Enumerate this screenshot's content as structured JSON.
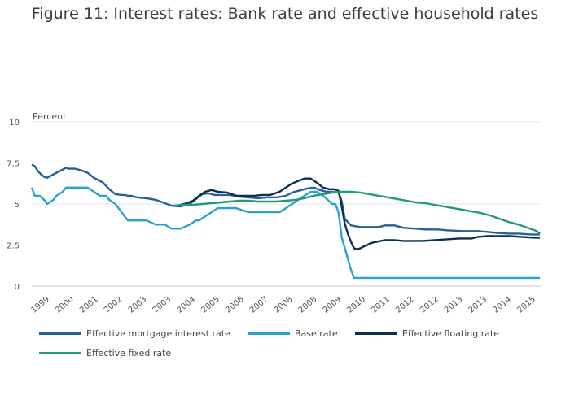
{
  "chart_data": {
    "type": "line",
    "title": "Figure 11: Interest rates: Bank rate and effective household rates",
    "ylabel": "Percent",
    "xlabel": "",
    "ylim": [
      0,
      10
    ],
    "xlim": [
      1998.6,
      2015.05
    ],
    "y_ticks": [
      "0",
      "2.5",
      "5",
      "7.5",
      "10"
    ],
    "y_tick_values": [
      0,
      2.5,
      5,
      7.5,
      10
    ],
    "x_ticks": [
      "1999",
      "2000",
      "2001",
      "2002",
      "2003",
      "2003",
      "2004",
      "2005",
      "2006",
      "2007",
      "2008",
      "2008",
      "2009",
      "2010",
      "2011",
      "2012",
      "2012",
      "2013",
      "2013",
      "2014",
      "2015"
    ],
    "grid": true,
    "legend_position": "bottom",
    "series": [
      {
        "name": "Effective mortgage interest rate",
        "color": "#25609a",
        "x": [
          1998.6,
          1998.7,
          1998.8,
          1998.9,
          1999.0,
          1999.1,
          1999.2,
          1999.3,
          1999.5,
          1999.6,
          1999.7,
          1999.8,
          1999.9,
          2000.0,
          2000.2,
          2000.4,
          2000.6,
          2000.8,
          2000.9,
          2001.1,
          2001.3,
          2001.5,
          2001.6,
          2001.7,
          2001.8,
          2002.0,
          2002.3,
          2002.6,
          2002.9,
          2003.1,
          2003.4,
          2003.7,
          2003.9,
          2004.1,
          2004.3,
          2004.5,
          2004.8,
          2005.0,
          2005.3,
          2005.6,
          2005.9,
          2006.2,
          2006.5,
          2006.8,
          2007.0,
          2007.3,
          2007.5,
          2007.7,
          2007.9,
          2008.1,
          2008.3,
          2008.5,
          2008.6,
          2008.7,
          2008.8,
          2008.9,
          2009.2,
          2009.5,
          2009.8,
          2010.0,
          2010.3,
          2010.6,
          2011.0,
          2011.3,
          2011.7,
          2012.0,
          2012.5,
          2013.0,
          2013.3,
          2013.6,
          2014.0,
          2014.3,
          2014.7,
          2015.0
        ],
        "values": [
          7.4,
          7.3,
          7.0,
          6.8,
          6.65,
          6.6,
          6.7,
          6.8,
          7.0,
          7.1,
          7.2,
          7.15,
          7.15,
          7.15,
          7.05,
          6.9,
          6.6,
          6.4,
          6.3,
          5.9,
          5.6,
          5.55,
          5.55,
          5.5,
          5.5,
          5.4,
          5.35,
          5.25,
          5.05,
          4.9,
          4.85,
          5.0,
          5.3,
          5.6,
          5.65,
          5.55,
          5.55,
          5.55,
          5.45,
          5.4,
          5.35,
          5.4,
          5.4,
          5.5,
          5.7,
          5.85,
          5.95,
          6.0,
          5.85,
          5.75,
          5.75,
          5.7,
          5.2,
          4.1,
          3.9,
          3.7,
          3.6,
          3.6,
          3.6,
          3.7,
          3.7,
          3.55,
          3.5,
          3.45,
          3.45,
          3.4,
          3.35,
          3.35,
          3.3,
          3.25,
          3.2,
          3.2,
          3.15,
          3.15
        ]
      },
      {
        "name": "Base rate",
        "color": "#2ba1d1",
        "x": [
          1998.6,
          1998.7,
          1998.85,
          1999.0,
          1999.1,
          1999.3,
          1999.4,
          1999.6,
          1999.7,
          1999.9,
          2000.0,
          2000.2,
          2000.4,
          2000.6,
          2000.8,
          2001.0,
          2001.1,
          2001.3,
          2001.5,
          2001.7,
          2001.85,
          2002.0,
          2002.3,
          2002.6,
          2002.9,
          2003.1,
          2003.4,
          2003.7,
          2003.9,
          2004.0,
          2004.2,
          2004.4,
          2004.6,
          2004.8,
          2005.0,
          2005.2,
          2005.6,
          2006.0,
          2006.3,
          2006.6,
          2006.8,
          2007.0,
          2007.2,
          2007.4,
          2007.6,
          2007.8,
          2008.0,
          2008.15,
          2008.3,
          2008.4,
          2008.5,
          2008.6,
          2008.75,
          2008.9,
          2009.0,
          2009.5,
          2010.0,
          2011.0,
          2012.0,
          2013.0,
          2014.0,
          2015.0
        ],
        "values": [
          6.0,
          5.5,
          5.5,
          5.25,
          5.0,
          5.25,
          5.5,
          5.75,
          6.0,
          6.0,
          6.0,
          6.0,
          6.0,
          5.75,
          5.5,
          5.5,
          5.25,
          5.0,
          4.5,
          4.0,
          4.0,
          4.0,
          4.0,
          3.75,
          3.75,
          3.5,
          3.5,
          3.75,
          4.0,
          4.0,
          4.25,
          4.5,
          4.75,
          4.75,
          4.75,
          4.75,
          4.5,
          4.5,
          4.5,
          4.5,
          4.75,
          5.0,
          5.25,
          5.5,
          5.75,
          5.75,
          5.5,
          5.25,
          5.0,
          5.0,
          4.5,
          3.0,
          2.0,
          1.0,
          0.5,
          0.5,
          0.5,
          0.5,
          0.5,
          0.5,
          0.5,
          0.5
        ]
      },
      {
        "name": "Effective floating rate",
        "color": "#0d3050",
        "x": [
          2003.3,
          2003.6,
          2003.8,
          2004.0,
          2004.2,
          2004.4,
          2004.6,
          2004.9,
          2005.2,
          2005.5,
          2005.8,
          2006.0,
          2006.3,
          2006.6,
          2006.8,
          2007.0,
          2007.2,
          2007.4,
          2007.6,
          2007.8,
          2008.0,
          2008.2,
          2008.35,
          2008.5,
          2008.6,
          2008.7,
          2008.8,
          2008.9,
          2009.0,
          2009.1,
          2009.2,
          2009.3,
          2009.6,
          2010.0,
          2010.3,
          2010.6,
          2010.9,
          2011.2,
          2011.6,
          2012.0,
          2012.4,
          2012.8,
          2013.0,
          2013.3,
          2013.6,
          2014.0,
          2014.4,
          2014.8,
          2015.0
        ],
        "values": [
          4.9,
          5.05,
          5.2,
          5.5,
          5.75,
          5.85,
          5.75,
          5.7,
          5.5,
          5.5,
          5.5,
          5.55,
          5.55,
          5.75,
          6.0,
          6.25,
          6.4,
          6.55,
          6.55,
          6.3,
          6.0,
          5.9,
          5.9,
          5.8,
          4.9,
          3.8,
          3.2,
          2.7,
          2.3,
          2.25,
          2.3,
          2.4,
          2.65,
          2.8,
          2.8,
          2.75,
          2.75,
          2.75,
          2.8,
          2.85,
          2.9,
          2.9,
          3.0,
          3.05,
          3.05,
          3.05,
          3.0,
          2.95,
          2.95
        ]
      },
      {
        "name": "Effective fixed rate",
        "color": "#219a7c",
        "x": [
          2003.2,
          2003.5,
          2003.8,
          2004.1,
          2004.4,
          2004.7,
          2005.0,
          2005.3,
          2005.6,
          2005.9,
          2006.2,
          2006.5,
          2006.8,
          2007.1,
          2007.4,
          2007.7,
          2008.0,
          2008.3,
          2008.6,
          2008.9,
          2009.2,
          2009.5,
          2009.8,
          2010.1,
          2010.4,
          2010.7,
          2011.0,
          2011.3,
          2011.6,
          2011.9,
          2012.2,
          2012.5,
          2012.8,
          2013.1,
          2013.4,
          2013.7,
          2014.0,
          2014.3,
          2014.6,
          2014.9,
          2015.0
        ],
        "values": [
          4.9,
          4.95,
          4.95,
          5.0,
          5.05,
          5.1,
          5.15,
          5.2,
          5.2,
          5.15,
          5.15,
          5.15,
          5.2,
          5.25,
          5.35,
          5.5,
          5.6,
          5.7,
          5.75,
          5.75,
          5.7,
          5.6,
          5.5,
          5.4,
          5.3,
          5.2,
          5.1,
          5.05,
          4.95,
          4.85,
          4.75,
          4.65,
          4.55,
          4.45,
          4.3,
          4.1,
          3.9,
          3.75,
          3.55,
          3.35,
          3.2
        ]
      }
    ]
  }
}
